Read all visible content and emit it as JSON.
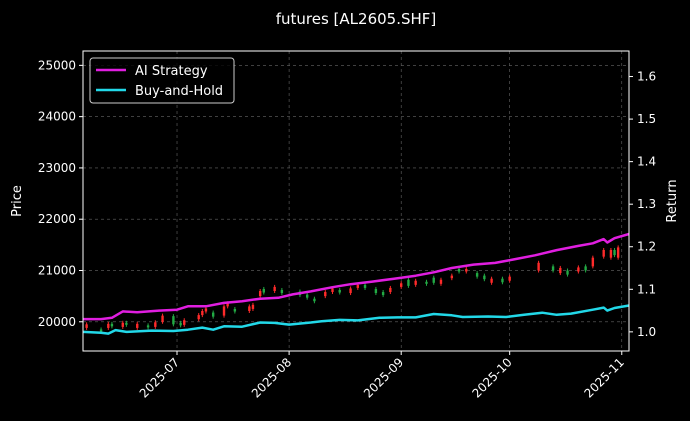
{
  "chart_data": {
    "type": "line",
    "title": "futures [AL2605.SHF]",
    "ylabel_left": "Price",
    "ylabel_right": "Return",
    "xlim": [
      "2025-06-05",
      "2025-11-03"
    ],
    "ylim_left": [
      19430,
      25280
    ],
    "ylim_right": [
      0.955,
      1.66
    ],
    "x_ticks": [
      "2025-07",
      "2025-08",
      "2025-09",
      "2025-10",
      "2025-11"
    ],
    "x_tick_dates": [
      "2025-07-01",
      "2025-08-01",
      "2025-09-01",
      "2025-10-01",
      "2025-11-01"
    ],
    "y_ticks_left": [
      20000,
      21000,
      22000,
      23000,
      24000,
      25000
    ],
    "y_ticks_right": [
      1.0,
      1.1,
      1.2,
      1.3,
      1.4,
      1.5,
      1.6
    ],
    "grid": true,
    "legend_position": "top-left",
    "series": [
      {
        "name": "AI Strategy",
        "axis": "right",
        "color": "#e01ee0",
        "points": [
          [
            "2025-06-05",
            1.03
          ],
          [
            "2025-06-10",
            1.03
          ],
          [
            "2025-06-13",
            1.033
          ],
          [
            "2025-06-16",
            1.048
          ],
          [
            "2025-06-20",
            1.046
          ],
          [
            "2025-06-26",
            1.05
          ],
          [
            "2025-07-01",
            1.052
          ],
          [
            "2025-07-04",
            1.06
          ],
          [
            "2025-07-09",
            1.06
          ],
          [
            "2025-07-14",
            1.068
          ],
          [
            "2025-07-19",
            1.072
          ],
          [
            "2025-07-24",
            1.078
          ],
          [
            "2025-07-29",
            1.08
          ],
          [
            "2025-08-02",
            1.088
          ],
          [
            "2025-08-07",
            1.095
          ],
          [
            "2025-08-13",
            1.105
          ],
          [
            "2025-08-18",
            1.112
          ],
          [
            "2025-08-24",
            1.118
          ],
          [
            "2025-08-30",
            1.125
          ],
          [
            "2025-09-05",
            1.132
          ],
          [
            "2025-09-10",
            1.14
          ],
          [
            "2025-09-15",
            1.15
          ],
          [
            "2025-09-21",
            1.158
          ],
          [
            "2025-09-27",
            1.162
          ],
          [
            "2025-10-02",
            1.17
          ],
          [
            "2025-10-08",
            1.18
          ],
          [
            "2025-10-14",
            1.192
          ],
          [
            "2025-10-20",
            1.202
          ],
          [
            "2025-10-24",
            1.208
          ],
          [
            "2025-10-27",
            1.218
          ],
          [
            "2025-10-28",
            1.21
          ],
          [
            "2025-10-30",
            1.22
          ],
          [
            "2025-11-03",
            1.23
          ]
        ]
      },
      {
        "name": "Buy-and-Hold",
        "axis": "right",
        "color": "#22d8e8",
        "points": [
          [
            "2025-06-05",
            1.0
          ],
          [
            "2025-06-10",
            0.998
          ],
          [
            "2025-06-12",
            0.996
          ],
          [
            "2025-06-14",
            1.004
          ],
          [
            "2025-06-17",
            1.0
          ],
          [
            "2025-06-24",
            1.003
          ],
          [
            "2025-06-30",
            1.002
          ],
          [
            "2025-07-04",
            1.005
          ],
          [
            "2025-07-08",
            1.01
          ],
          [
            "2025-07-11",
            1.005
          ],
          [
            "2025-07-14",
            1.013
          ],
          [
            "2025-07-19",
            1.012
          ],
          [
            "2025-07-24",
            1.022
          ],
          [
            "2025-07-28",
            1.021
          ],
          [
            "2025-08-01",
            1.017
          ],
          [
            "2025-08-07",
            1.022
          ],
          [
            "2025-08-10",
            1.025
          ],
          [
            "2025-08-15",
            1.028
          ],
          [
            "2025-08-20",
            1.027
          ],
          [
            "2025-08-26",
            1.033
          ],
          [
            "2025-08-31",
            1.034
          ],
          [
            "2025-09-05",
            1.034
          ],
          [
            "2025-09-10",
            1.042
          ],
          [
            "2025-09-15",
            1.039
          ],
          [
            "2025-09-18",
            1.035
          ],
          [
            "2025-09-25",
            1.036
          ],
          [
            "2025-09-30",
            1.035
          ],
          [
            "2025-10-05",
            1.04
          ],
          [
            "2025-10-10",
            1.045
          ],
          [
            "2025-10-14",
            1.04
          ],
          [
            "2025-10-18",
            1.043
          ],
          [
            "2025-10-24",
            1.052
          ],
          [
            "2025-10-27",
            1.057
          ],
          [
            "2025-10-28",
            1.05
          ],
          [
            "2025-10-30",
            1.056
          ],
          [
            "2025-11-03",
            1.062
          ]
        ]
      }
    ],
    "candles": {
      "axis": "left",
      "up_color": "#ff2a2a",
      "down_color": "#22aa44",
      "bars": [
        [
          "2025-06-06",
          19880,
          19950
        ],
        [
          "2025-06-10",
          19850,
          19800
        ],
        [
          "2025-06-12",
          19880,
          19960
        ],
        [
          "2025-06-13",
          19960,
          19910
        ],
        [
          "2025-06-16",
          19900,
          19980
        ],
        [
          "2025-06-17",
          19980,
          19940
        ],
        [
          "2025-06-20",
          19880,
          19960
        ],
        [
          "2025-06-23",
          19930,
          19890
        ],
        [
          "2025-06-25",
          19900,
          19990
        ],
        [
          "2025-06-27",
          20000,
          20120
        ],
        [
          "2025-06-30",
          20110,
          19950
        ],
        [
          "2025-07-02",
          19980,
          19930
        ],
        [
          "2025-07-03",
          19940,
          20030
        ],
        [
          "2025-07-07",
          20050,
          20130
        ],
        [
          "2025-07-08",
          20130,
          20210
        ],
        [
          "2025-07-09",
          20200,
          20260
        ],
        [
          "2025-07-11",
          20180,
          20100
        ],
        [
          "2025-07-14",
          20120,
          20300
        ],
        [
          "2025-07-15",
          20300,
          20360
        ],
        [
          "2025-07-17",
          20250,
          20200
        ],
        [
          "2025-07-21",
          20210,
          20300
        ],
        [
          "2025-07-22",
          20250,
          20330
        ],
        [
          "2025-07-24",
          20500,
          20600
        ],
        [
          "2025-07-25",
          20640,
          20570
        ],
        [
          "2025-07-28",
          20600,
          20680
        ],
        [
          "2025-07-30",
          20620,
          20560
        ],
        [
          "2025-08-04",
          20590,
          20520
        ],
        [
          "2025-08-06",
          20530,
          20470
        ],
        [
          "2025-08-08",
          20450,
          20400
        ],
        [
          "2025-08-11",
          20500,
          20580
        ],
        [
          "2025-08-13",
          20580,
          20650
        ],
        [
          "2025-08-15",
          20620,
          20570
        ],
        [
          "2025-08-18",
          20560,
          20650
        ],
        [
          "2025-08-20",
          20660,
          20720
        ],
        [
          "2025-08-22",
          20720,
          20660
        ],
        [
          "2025-08-25",
          20640,
          20560
        ],
        [
          "2025-08-27",
          20580,
          20520
        ],
        [
          "2025-08-29",
          20580,
          20660
        ],
        [
          "2025-09-01",
          20680,
          20750
        ],
        [
          "2025-09-03",
          20820,
          20700
        ],
        [
          "2025-09-05",
          20720,
          20800
        ],
        [
          "2025-09-08",
          20780,
          20740
        ],
        [
          "2025-09-10",
          20860,
          20760
        ],
        [
          "2025-09-12",
          20740,
          20820
        ],
        [
          "2025-09-15",
          20850,
          20900
        ],
        [
          "2025-09-17",
          21030,
          20980
        ],
        [
          "2025-09-19",
          20980,
          21030
        ],
        [
          "2025-09-22",
          20950,
          20880
        ],
        [
          "2025-09-24",
          20900,
          20830
        ],
        [
          "2025-09-26",
          20760,
          20840
        ],
        [
          "2025-09-29",
          20840,
          20770
        ],
        [
          "2025-10-01",
          20800,
          20880
        ],
        [
          "2025-10-09",
          21000,
          21150
        ],
        [
          "2025-10-13",
          21080,
          21000
        ],
        [
          "2025-10-15",
          20950,
          21050
        ],
        [
          "2025-10-17",
          21000,
          20920
        ],
        [
          "2025-10-20",
          20980,
          21060
        ],
        [
          "2025-10-22",
          21080,
          21000
        ],
        [
          "2025-10-24",
          21080,
          21250
        ],
        [
          "2025-10-27",
          21270,
          21400
        ],
        [
          "2025-10-29",
          21250,
          21400
        ],
        [
          "2025-10-30",
          21400,
          21300
        ],
        [
          "2025-10-31",
          21250,
          21450
        ]
      ]
    }
  }
}
